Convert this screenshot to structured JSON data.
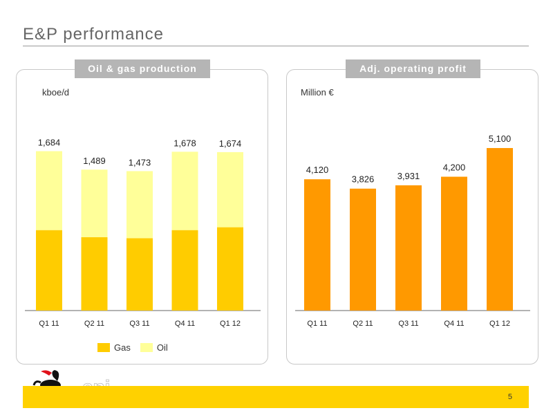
{
  "header": {
    "title": "E&P performance"
  },
  "colors": {
    "gas": "#ffcc00",
    "oil": "#ffff99",
    "profit": "#ff9900",
    "axis": "#666666"
  },
  "legend": {
    "gas_label": "Gas",
    "oil_label": "Oil"
  },
  "logo": {
    "text": "eni"
  },
  "footer": {
    "page_number": "5"
  },
  "chart_data": [
    {
      "type": "bar",
      "stacked": true,
      "title": "Oil & gas production",
      "ylabel": "kboe/d",
      "categories": [
        "Q1 11",
        "Q2 11",
        "Q3 11",
        "Q4 11",
        "Q1 12"
      ],
      "totals": [
        "1,684",
        "1,489",
        "1,473",
        "1,678",
        "1,674"
      ],
      "series": [
        {
          "name": "Gas",
          "values": [
            850,
            775,
            765,
            850,
            880
          ]
        },
        {
          "name": "Oil",
          "values": [
            834,
            714,
            708,
            828,
            794
          ]
        }
      ],
      "ylim": [
        0,
        1900
      ],
      "legend": "bottom",
      "grid": false
    },
    {
      "type": "bar",
      "title": "Adj. operating profit",
      "ylabel": "Million €",
      "categories": [
        "Q1 11",
        "Q2 11",
        "Q3 11",
        "Q4 11",
        "Q1 12"
      ],
      "values": [
        4120,
        3826,
        3931,
        4200,
        5100
      ],
      "value_labels": [
        "4,120",
        "3,826",
        "3,931",
        "4,200",
        "5,100"
      ],
      "ylim": [
        0,
        5600
      ],
      "legend": "none",
      "grid": false
    }
  ]
}
